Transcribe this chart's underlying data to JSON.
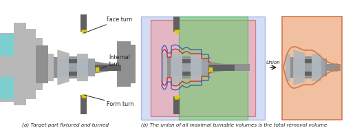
{
  "figsize": [
    5.0,
    1.86
  ],
  "dpi": 100,
  "caption_a": "(a) Target part fixtured and turned",
  "caption_b": "(b) The union of all maximal turnable volumes is the total removal volume",
  "label_face": "Face turn",
  "label_internal": "Internal\nturn",
  "label_form": "Form turn",
  "label_union": "Union",
  "bg_color": "#ffffff",
  "teal_color": "#7dcfcf",
  "gray_lightest": "#d8d8d8",
  "gray_light": "#b8b8b8",
  "gray_mid": "#909090",
  "gray_dark": "#606060",
  "gray_steel": "#a8b4c0",
  "gray_chuck": "#808080",
  "green_fill": "#66cc66",
  "pink_fill": "#ee9999",
  "blue_fill": "#aabbee",
  "orange_border": "#d4784a",
  "orange_bg": "#f0c0a0",
  "green_border": "#44aa44",
  "pink_border": "#cc4444",
  "blue_border": "#6688cc",
  "red_contour": "#cc2222",
  "blue_contour": "#3355bb",
  "yellow_insert": "#ddcc00",
  "tool_dark": "#555555",
  "arrow_color": "#222222",
  "text_color": "#222222",
  "caption_fontsize": 5.2,
  "label_fontsize": 5.8,
  "union_fontsize": 5.2
}
